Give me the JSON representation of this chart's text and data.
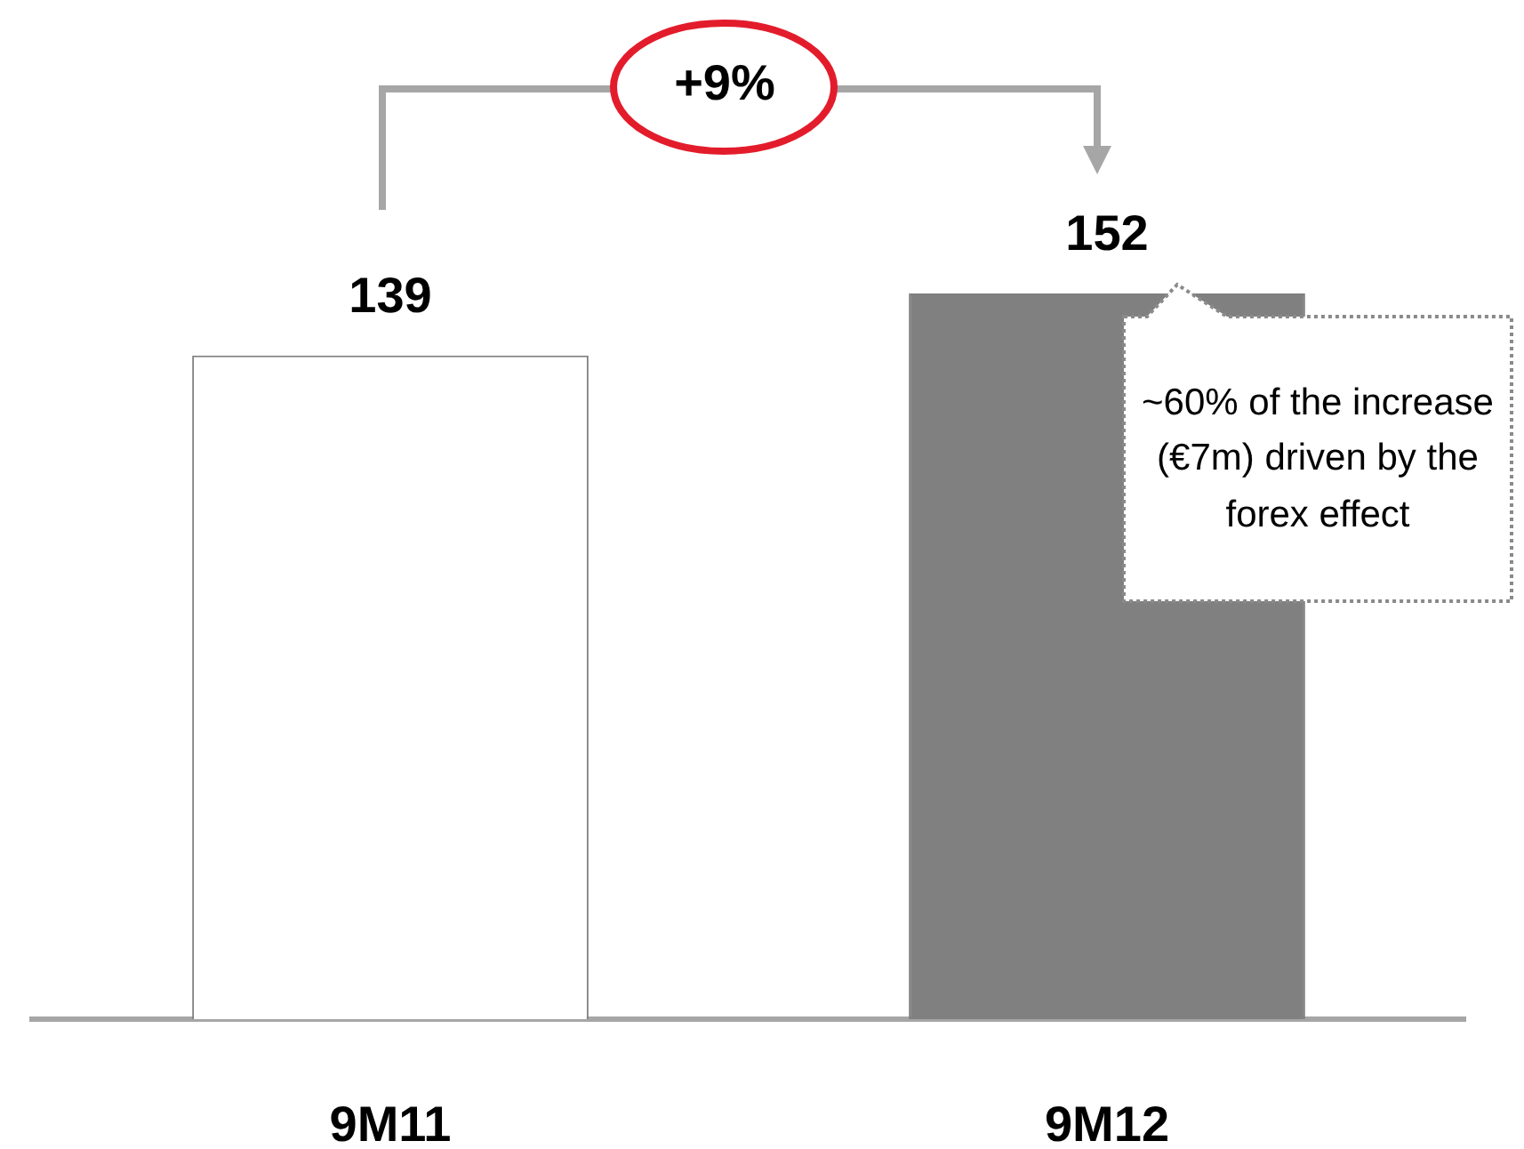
{
  "chart_data": {
    "type": "bar",
    "categories": [
      "9M11",
      "9M12"
    ],
    "values": [
      139,
      152
    ],
    "colors": [
      "#ffffff",
      "#808080"
    ],
    "data_labels": true,
    "grid": false,
    "legend": false,
    "tick_labels": "x",
    "annotations": [
      "+9%",
      "~60% of the increase (€7m) driven by the forex effect"
    ]
  }
}
